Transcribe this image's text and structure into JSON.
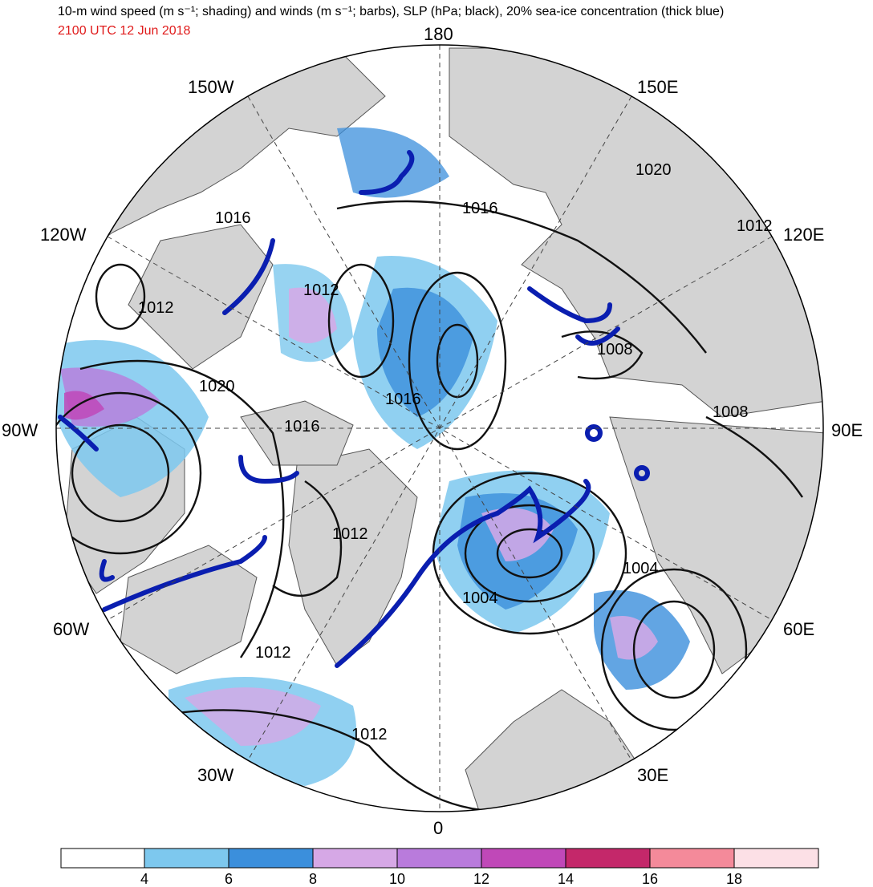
{
  "title": "10-m wind speed (m s⁻¹; shading) and winds (m s⁻¹; barbs), SLP (hPa; black), 20% sea-ice concentration (thick blue)",
  "valid_time": "2100 UTC 12 Jun 2018",
  "longitude_labels": {
    "top": "180",
    "bottom": "0",
    "left": "90W",
    "right": "90E",
    "upper_left_1": "150W",
    "upper_left_2": "120W",
    "upper_right_1": "150E",
    "upper_right_2": "120E",
    "lower_left_1": "60W",
    "lower_left_2": "30W",
    "lower_right_1": "60E",
    "lower_right_2": "30E"
  },
  "isobar_labels": [
    "1016",
    "1012",
    "1020",
    "1016",
    "1012",
    "1016",
    "1008",
    "1020",
    "1012",
    "1008",
    "1016",
    "1012",
    "1004",
    "1004",
    "1012",
    "1012"
  ],
  "colorbar": {
    "ticks": [
      "4",
      "6",
      "8",
      "10",
      "12",
      "14",
      "16",
      "18"
    ],
    "colors": [
      "#ffffff",
      "#7dc8ee",
      "#3b8fdc",
      "#d6a8e6",
      "#b97bdc",
      "#c048b8",
      "#c4286a",
      "#f48a9a",
      "#fce0e6"
    ]
  },
  "colors": {
    "land": "#d3d3d3",
    "sea_ice_edge": "#0a1eb0",
    "isobar": "#111111",
    "title_time": "#e01b1b"
  }
}
